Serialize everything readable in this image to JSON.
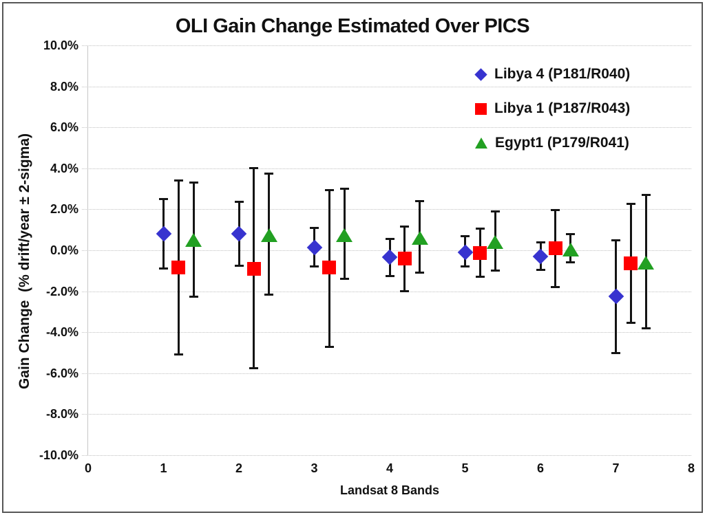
{
  "title": "OLI Gain Change Estimated Over PICS",
  "chart_data": {
    "type": "scatter",
    "title": "OLI Gain Change Estimated Over PICS",
    "xlabel": "Landsat 8 Bands",
    "ylabel": "Gain Change  (% drift/year ± 2-sigma)",
    "xlim": [
      0,
      8
    ],
    "ylim": [
      -10,
      10
    ],
    "grid": "horizontal-dotted",
    "legend_position": "top-right-inside",
    "error_bars": "±2-sigma, black vertical lines with caps",
    "x_ticks": [
      {
        "label": "0",
        "value": 0
      },
      {
        "label": "1",
        "value": 1
      },
      {
        "label": "2",
        "value": 2
      },
      {
        "label": "3",
        "value": 3
      },
      {
        "label": "4",
        "value": 4
      },
      {
        "label": "5",
        "value": 5
      },
      {
        "label": "6",
        "value": 6
      },
      {
        "label": "7",
        "value": 7
      },
      {
        "label": "8",
        "value": 8
      }
    ],
    "y_ticks": [
      {
        "label": "10.0%",
        "value": 10
      },
      {
        "label": "8.0%",
        "value": 8
      },
      {
        "label": "6.0%",
        "value": 6
      },
      {
        "label": "4.0%",
        "value": 4
      },
      {
        "label": "2.0%",
        "value": 2
      },
      {
        "label": "0.0%",
        "value": 0
      },
      {
        "label": "-2.0%",
        "value": -2
      },
      {
        "label": "-4.0%",
        "value": -4
      },
      {
        "label": "-6.0%",
        "value": -6
      },
      {
        "label": "-8.0%",
        "value": -8
      },
      {
        "label": "-10.0%",
        "value": -10
      }
    ],
    "categories": [
      1,
      2,
      3,
      4,
      5,
      6,
      7
    ],
    "series": [
      {
        "name": "Libya 4 (P181/R040)",
        "marker": "diamond",
        "color": "#3733CF",
        "x_offset": 0.0,
        "values": [
          0.8,
          0.8,
          0.15,
          -0.35,
          -0.1,
          -0.3,
          -2.25
        ],
        "upper": [
          2.5,
          2.35,
          1.1,
          0.55,
          0.7,
          0.4,
          0.5
        ],
        "lower": [
          -0.9,
          -0.75,
          -0.8,
          -1.25,
          -0.8,
          -0.95,
          -5.0
        ]
      },
      {
        "name": "Libya 1 (P187/R043)",
        "marker": "square",
        "color": "#FF0000",
        "x_offset": 0.2,
        "values": [
          -0.85,
          -0.9,
          -0.85,
          -0.4,
          -0.15,
          0.1,
          -0.65
        ],
        "upper": [
          3.4,
          4.0,
          2.95,
          1.15,
          1.05,
          1.95,
          2.25
        ],
        "lower": [
          -5.1,
          -5.75,
          -4.7,
          -2.0,
          -1.3,
          -1.8,
          -3.55
        ]
      },
      {
        "name": "Egypt1 (P179/R041)",
        "marker": "triangle",
        "color": "#22A022",
        "x_offset": 0.4,
        "values": [
          0.5,
          0.75,
          0.75,
          0.6,
          0.4,
          0.05,
          -0.6
        ],
        "upper": [
          3.3,
          3.75,
          3.0,
          2.4,
          1.9,
          0.8,
          2.7
        ],
        "lower": [
          -2.25,
          -2.15,
          -1.4,
          -1.1,
          -1.0,
          -0.6,
          -3.8
        ]
      }
    ]
  }
}
